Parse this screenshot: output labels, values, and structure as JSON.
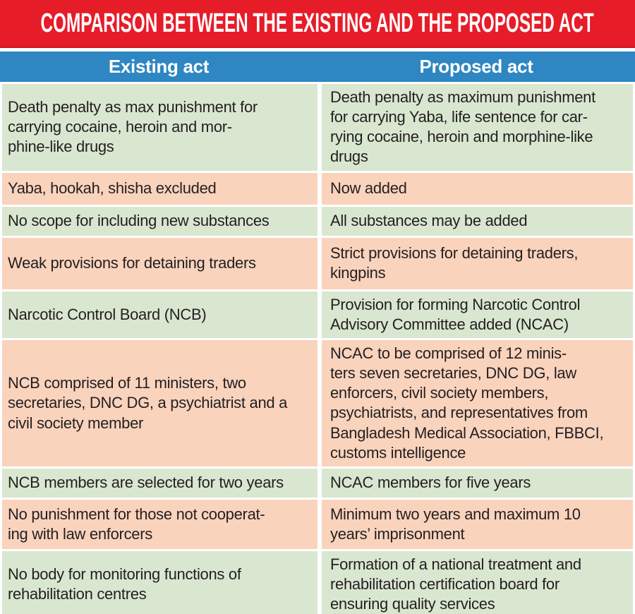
{
  "title": "COMPARISON BETWEEN THE EXISTING AND THE PROPOSED ACT",
  "columns": {
    "existing": "Existing act",
    "proposed": "Proposed act"
  },
  "colors": {
    "red": "#e71c29",
    "blue": "#2e86c3",
    "green": "#d9e7d1",
    "peach": "#fad3bd",
    "text": "#231f20"
  },
  "rows": [
    {
      "existing": "Death penalty as max punishment for\ncarrying cocaine, heroin and mor-\nphine-like drugs",
      "proposed": "Death penalty as maximum punishment\nfor carrying Yaba, life sentence for car-\nrying cocaine, heroin and morphine-like\ndrugs"
    },
    {
      "existing": "Yaba, hookah, shisha excluded",
      "proposed": "Now added"
    },
    {
      "existing": "No scope for including new substances",
      "proposed": "All substances may be added"
    },
    {
      "existing": "Weak provisions for detaining traders",
      "proposed": "Strict provisions for detaining traders,\nkingpins"
    },
    {
      "existing": "Narcotic Control Board (NCB)",
      "proposed": "Provision for forming Narcotic Control\nAdvisory Committee added (NCAC)"
    },
    {
      "existing": "NCB comprised of 11 ministers, two\nsecretaries, DNC DG, a psychiatrist and a\ncivil society member",
      "proposed": "NCAC to be comprised of 12 minis-\nters seven secretaries, DNC DG, law\nenforcers, civil society members,\npsychiatrists, and representatives from\nBangladesh Medical Association, FBBCI,\ncustoms intelligence"
    },
    {
      "existing": "NCB members are selected for two years",
      "proposed": "NCAC members for five years"
    },
    {
      "existing": "No punishment for those not cooperat-\ning with law enforcers",
      "proposed": "Minimum two years and maximum 10\nyears’ imprisonment"
    },
    {
      "existing": "No body for monitoring functions of\nrehabilitation centres",
      "proposed": "Formation of a national treatment and\nrehabilitation certification board for\nensuring quality services"
    }
  ]
}
